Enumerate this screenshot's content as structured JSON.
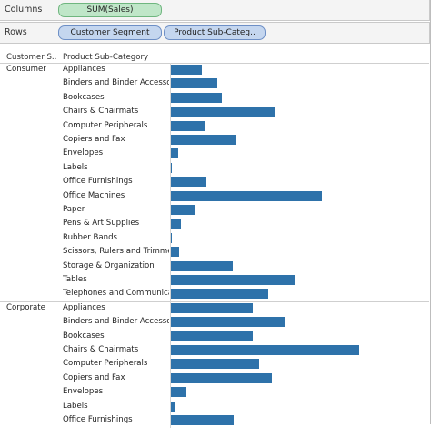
{
  "shelves": {
    "columns": {
      "title": "Columns",
      "pills": [
        "SUM(Sales)"
      ]
    },
    "rows": {
      "title": "Rows",
      "pills": [
        "Customer Segment",
        "Product Sub-Categ.."
      ]
    }
  },
  "headers": {
    "segment": "Customer S..",
    "subcategory": "Product Sub-Category"
  },
  "colors": {
    "bar": "#2e72aa",
    "measure_pill": "#bfe6c8",
    "dimension_pill": "#c4d6ef"
  },
  "chart_data": {
    "type": "bar",
    "orientation": "horizontal",
    "measure": "SUM(Sales)",
    "xlim": [
      0,
      100
    ],
    "value_units": "relative bar length (no axis values shown)",
    "segments": [
      {
        "name": "Consumer",
        "rows": [
          {
            "label": "Appliances",
            "value": 16.5
          },
          {
            "label": "Binders and Binder Accesso..",
            "value": 24.8
          },
          {
            "label": "Bookcases",
            "value": 27.2
          },
          {
            "label": "Chairs & Chairmats",
            "value": 55.3
          },
          {
            "label": "Computer Peripherals",
            "value": 18.0
          },
          {
            "label": "Copiers and Fax",
            "value": 34.5
          },
          {
            "label": "Envelopes",
            "value": 3.9
          },
          {
            "label": "Labels",
            "value": 0.5
          },
          {
            "label": "Office Furnishings",
            "value": 18.9
          },
          {
            "label": "Office Machines",
            "value": 80.1
          },
          {
            "label": "Paper",
            "value": 12.6
          },
          {
            "label": "Pens & Art Supplies",
            "value": 5.3
          },
          {
            "label": "Rubber Bands",
            "value": 0.2
          },
          {
            "label": "Scissors, Rulers and Trimme..",
            "value": 4.4
          },
          {
            "label": "Storage & Organization",
            "value": 33.0
          },
          {
            "label": "Tables",
            "value": 65.5
          },
          {
            "label": "Telephones and Communica..",
            "value": 51.9
          }
        ]
      },
      {
        "name": "Corporate",
        "rows": [
          {
            "label": "Appliances",
            "value": 43.7
          },
          {
            "label": "Binders and Binder Accesso..",
            "value": 60.2
          },
          {
            "label": "Bookcases",
            "value": 43.7
          },
          {
            "label": "Chairs & Chairmats",
            "value": 100.0
          },
          {
            "label": "Computer Peripherals",
            "value": 47.1
          },
          {
            "label": "Copiers and Fax",
            "value": 53.4
          },
          {
            "label": "Envelopes",
            "value": 8.3
          },
          {
            "label": "Labels",
            "value": 1.9
          },
          {
            "label": "Office Furnishings",
            "value": 33.5
          }
        ]
      }
    ]
  }
}
